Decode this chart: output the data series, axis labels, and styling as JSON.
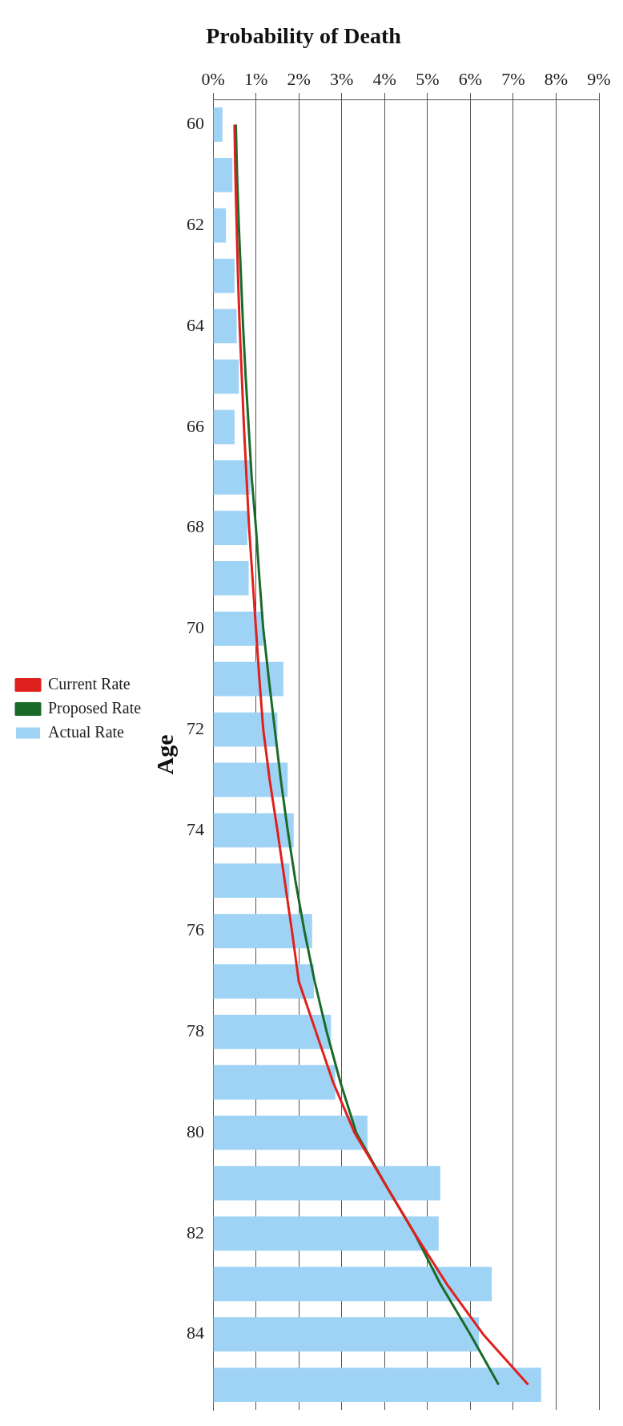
{
  "chart_data": {
    "type": "bar",
    "orientation": "horizontal",
    "title": "Probability of Death",
    "ylabel": "Age",
    "categories": [
      "60",
      null,
      "62",
      null,
      "64",
      null,
      "66",
      null,
      "68",
      null,
      "70",
      null,
      "72",
      null,
      "74",
      null,
      "76",
      null,
      "78",
      null,
      "80",
      null,
      "82",
      null,
      "84",
      null
    ],
    "series": [
      {
        "name": "Actual Rate",
        "color": "#9fd3f5",
        "values": [
          0.22,
          0.45,
          0.3,
          0.5,
          0.55,
          0.6,
          0.5,
          0.87,
          0.8,
          0.83,
          1.17,
          1.64,
          1.5,
          1.74,
          1.88,
          1.78,
          2.31,
          2.35,
          2.75,
          2.85,
          3.6,
          5.3,
          5.26,
          6.5,
          6.2,
          7.65
        ]
      },
      {
        "name": "Current Rate",
        "type": "line",
        "color": "#e0201c",
        "values": [
          0.5,
          0.52,
          0.55,
          0.58,
          0.62,
          0.67,
          0.72,
          0.78,
          0.84,
          0.92,
          1.0,
          1.08,
          1.17,
          1.32,
          1.5,
          1.67,
          1.84,
          2.0,
          2.4,
          2.8,
          3.3,
          4.0,
          4.7,
          5.45,
          6.3,
          7.35
        ]
      },
      {
        "name": "Proposed Rate",
        "type": "line",
        "color": "#1a6b2a",
        "values": [
          0.53,
          0.56,
          0.6,
          0.65,
          0.7,
          0.76,
          0.83,
          0.9,
          1.0,
          1.08,
          1.17,
          1.3,
          1.44,
          1.58,
          1.74,
          1.92,
          2.13,
          2.37,
          2.65,
          2.97,
          3.34,
          4.0,
          4.7,
          5.3,
          6.0,
          6.66
        ]
      }
    ],
    "xlim": [
      0,
      9
    ],
    "xticks": [
      {
        "value": 0,
        "label": "0%"
      },
      {
        "value": 1,
        "label": "1%"
      },
      {
        "value": 2,
        "label": "2%"
      },
      {
        "value": 3,
        "label": "3%"
      },
      {
        "value": 4,
        "label": "4%"
      },
      {
        "value": 5,
        "label": "5%"
      },
      {
        "value": 6,
        "label": "6%"
      },
      {
        "value": 7,
        "label": "7%"
      },
      {
        "value": 8,
        "label": "8%"
      },
      {
        "value": 9,
        "label": "9%"
      }
    ],
    "grid": "x",
    "legend": "left",
    "marker": "none",
    "line_style": "solid"
  }
}
